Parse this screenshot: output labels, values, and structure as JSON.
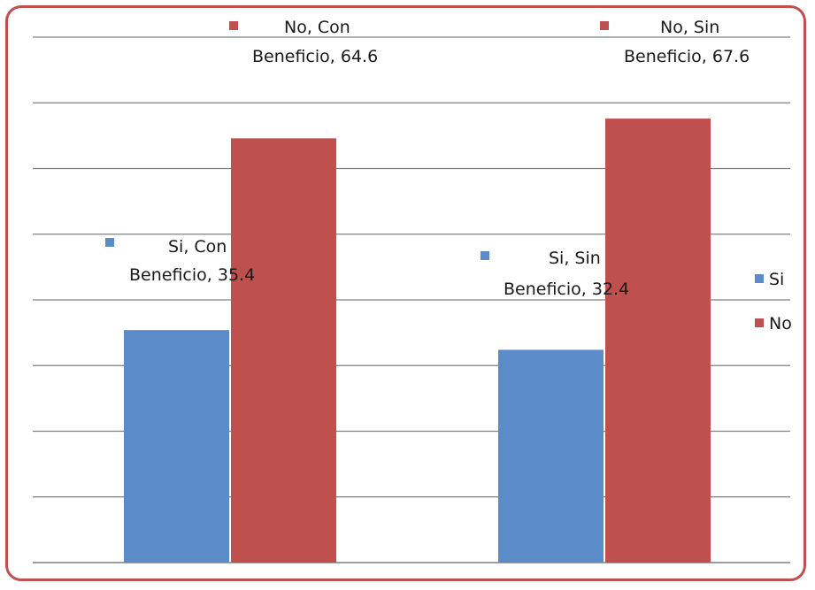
{
  "chart_data": {
    "type": "bar",
    "categories": [
      "Con Beneficio",
      "Sin Beneficio"
    ],
    "series": [
      {
        "name": "Si",
        "values": [
          35.4,
          32.4
        ],
        "color": "#5b8bc9"
      },
      {
        "name": "No",
        "values": [
          64.6,
          67.6
        ],
        "color": "#c0504d"
      }
    ],
    "data_labels": [
      [
        "Si, Con",
        "Beneficio, 35.4"
      ],
      [
        "Si, Sin",
        "Beneficio, 32.4"
      ],
      [
        "No, Con",
        "Beneficio, 64.6"
      ],
      [
        "No, Sin",
        "Beneficio, 67.6"
      ]
    ],
    "ylim": [
      0,
      80
    ],
    "grid": true,
    "legend_position": "right",
    "colors": {
      "frame": "#c0504d",
      "grid": "#7f7f7f"
    }
  }
}
